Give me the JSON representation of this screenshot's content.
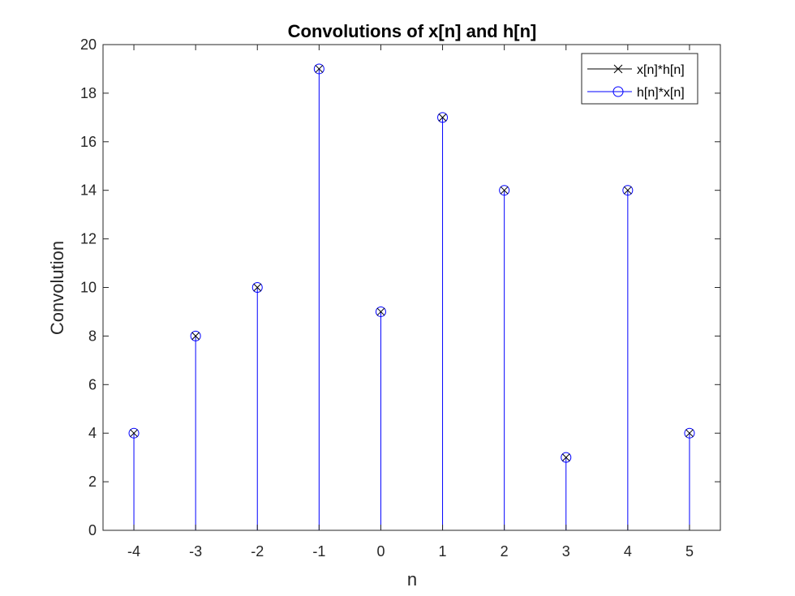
{
  "chart_data": {
    "type": "stem",
    "title": "Convolutions of x[n] and h[n]",
    "xlabel": "n",
    "ylabel": "Convolution",
    "x": [
      -4,
      -3,
      -2,
      -1,
      0,
      1,
      2,
      3,
      4,
      5
    ],
    "xlim": [
      -4.5,
      5.5
    ],
    "ylim": [
      0,
      20
    ],
    "xticks": [
      "-4",
      "-3",
      "-2",
      "-1",
      "0",
      "1",
      "2",
      "3",
      "4",
      "5"
    ],
    "yticks": [
      "0",
      "2",
      "4",
      "6",
      "8",
      "10",
      "12",
      "14",
      "16",
      "18",
      "20"
    ],
    "grid": false,
    "legend_position": "top-right",
    "series": [
      {
        "name": "x[n]*h[n]",
        "marker": "x",
        "color": "#000000",
        "values": [
          4,
          8,
          10,
          19,
          9,
          17,
          14,
          3,
          14,
          4
        ]
      },
      {
        "name": "h[n]*x[n]",
        "marker": "o",
        "color": "#0000ff",
        "values": [
          4,
          8,
          10,
          19,
          9,
          17,
          14,
          3,
          14,
          4
        ]
      }
    ]
  }
}
